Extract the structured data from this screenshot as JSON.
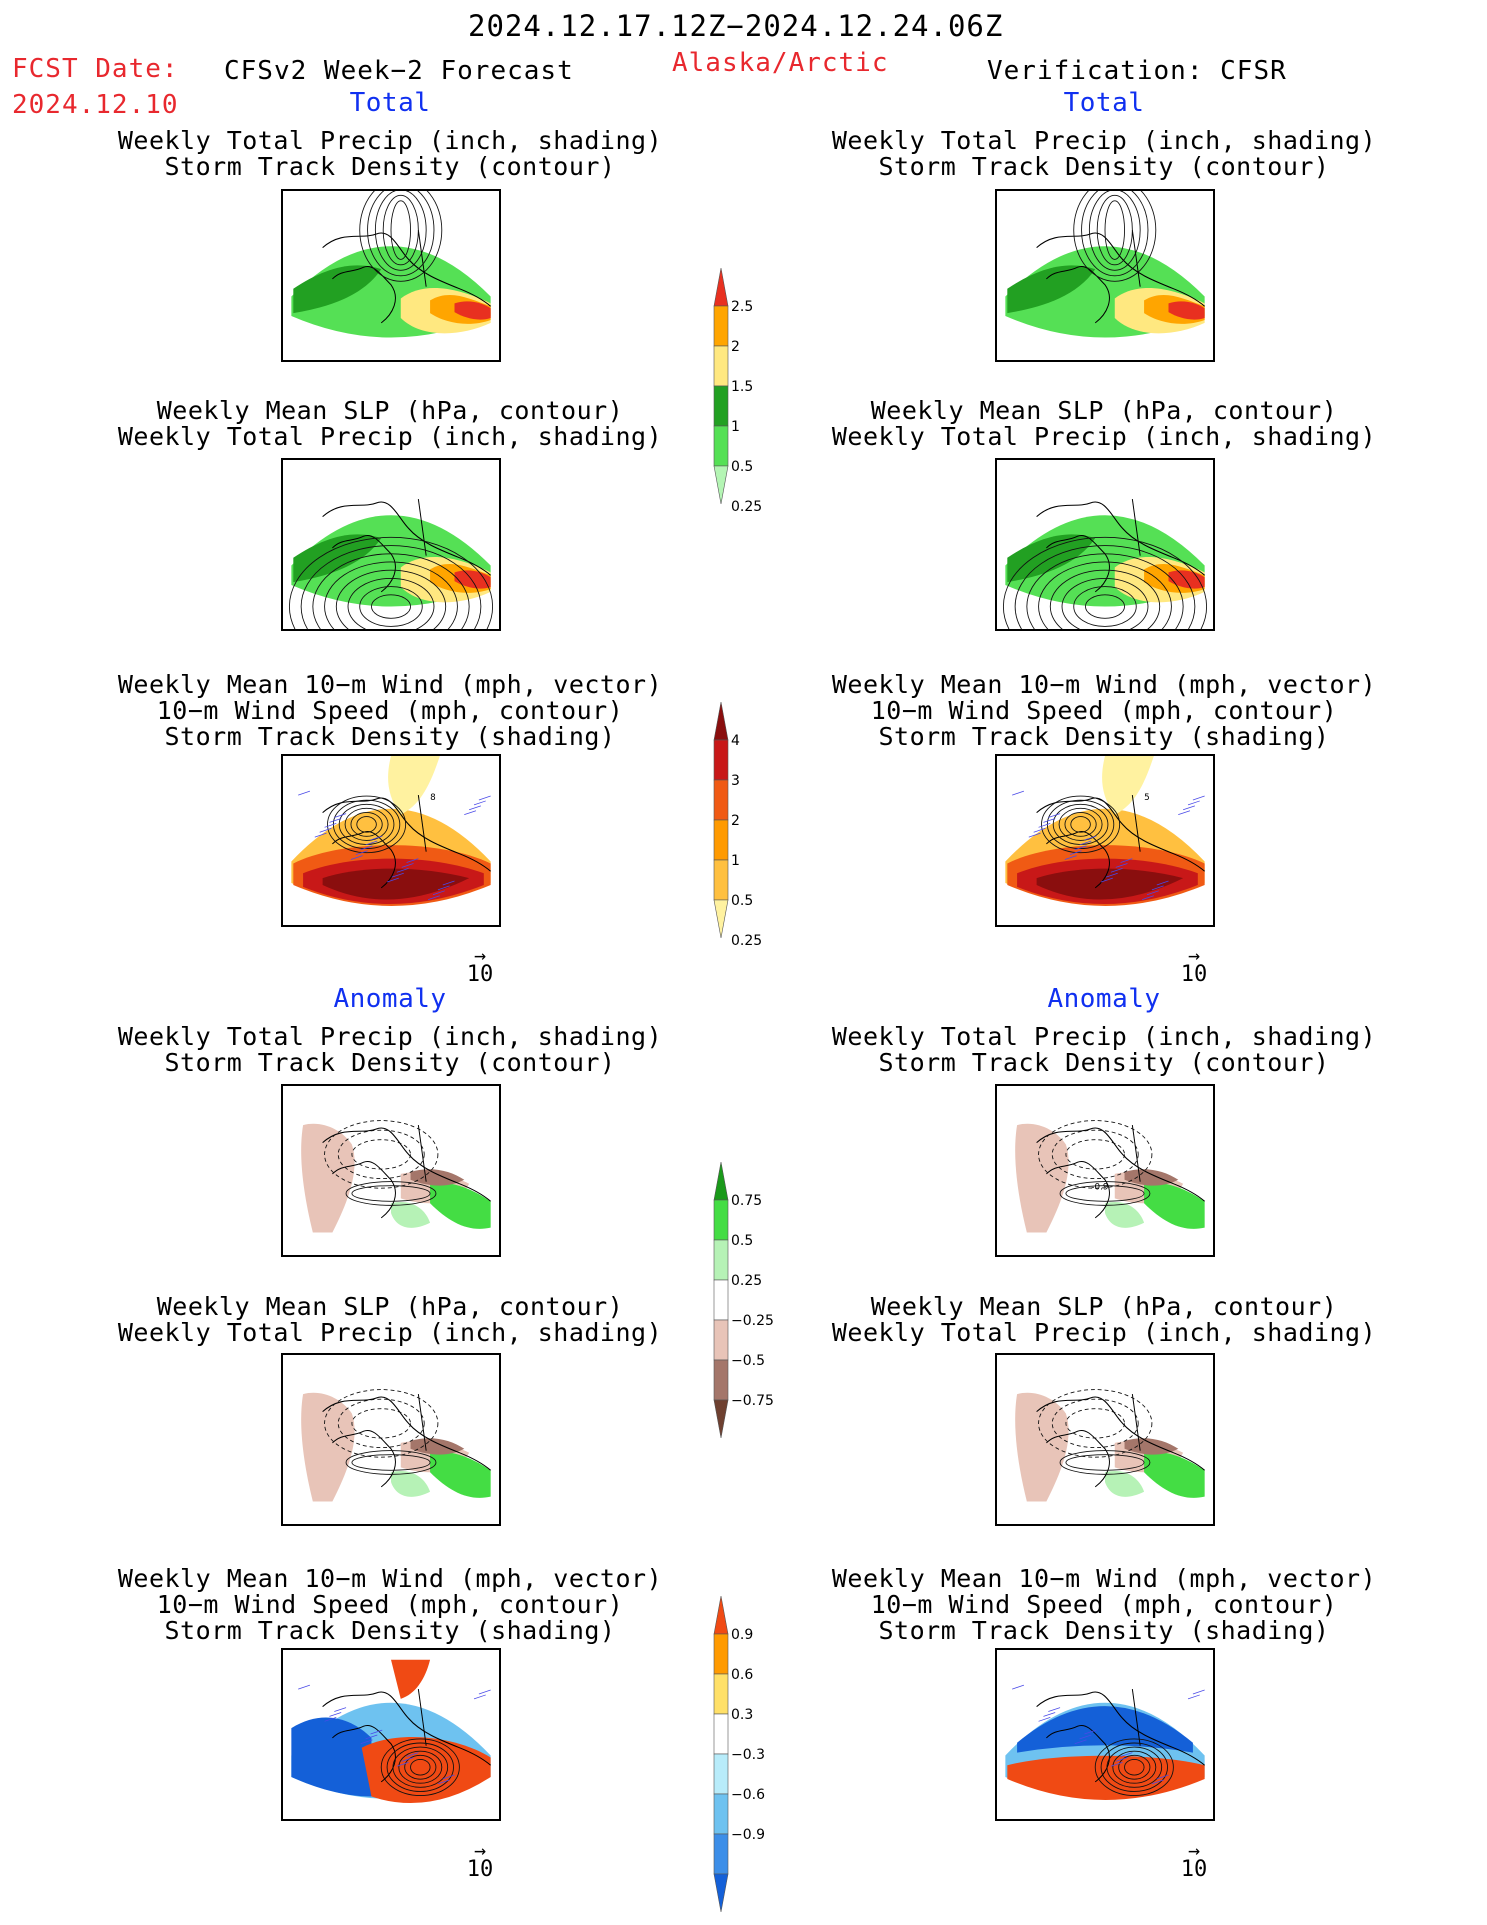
{
  "header": {
    "period": "2024.12.17.12Z−2024.12.24.06Z",
    "fcst_label": "FCST Date:",
    "fcst_date": "2024.12.10",
    "model": "CFSv2 Week−2 Forecast",
    "region": "Alaska/Arctic",
    "verification": "Verification: CFSR"
  },
  "sections": {
    "total": "Total",
    "anomaly": "Anomaly"
  },
  "panel_titles": {
    "precip_storm": [
      "Weekly Total Precip (inch, shading)",
      "Storm Track Density (contour)"
    ],
    "slp_precip": [
      "Weekly Mean SLP (hPa, contour)",
      "Weekly Total Precip (inch, shading)"
    ],
    "wind_storm": [
      "Weekly Mean 10−m Wind (mph, vector)",
      "10−m Wind Speed (mph, contour)",
      "Storm Track Density (shading)"
    ]
  },
  "vector_ref": "10",
  "colorbars": {
    "precip_total": {
      "ticks": [
        "2.5",
        "2",
        "1.5",
        "1",
        "0.5",
        "0.25"
      ],
      "colors": [
        "#e83020",
        "#ffa500",
        "#ffe880",
        "#22a022",
        "#55e055",
        "#b4f5b4"
      ]
    },
    "storm_total": {
      "ticks": [
        "4",
        "3",
        "2",
        "1",
        "0.5",
        "0.25"
      ],
      "colors": [
        "#8a0e0e",
        "#c81818",
        "#f05a14",
        "#ff9a00",
        "#ffc040",
        "#fff2a0"
      ]
    },
    "precip_anom": {
      "ticks": [
        "0.75",
        "0.5",
        "0.25",
        "−0.25",
        "−0.5",
        "−0.75"
      ],
      "colors": [
        "#1a9a1a",
        "#44dd44",
        "#b6f2b6",
        "#ffffff",
        "#e8c4b8",
        "#a4766a",
        "#6e4030"
      ]
    },
    "storm_anom": {
      "ticks": [
        "0.9",
        "0.6",
        "0.3",
        "−0.3",
        "−0.6",
        "−0.9"
      ],
      "colors": [
        "#f04a14",
        "#ff9a00",
        "#ffe068",
        "#ffffff",
        "#b8ecfa",
        "#6ec2f0",
        "#3c8ee8",
        "#1460d8"
      ]
    }
  },
  "contour_labels": {
    "wind_left": "8",
    "wind_right": "5",
    "anom_precip_right": "-0.9"
  }
}
